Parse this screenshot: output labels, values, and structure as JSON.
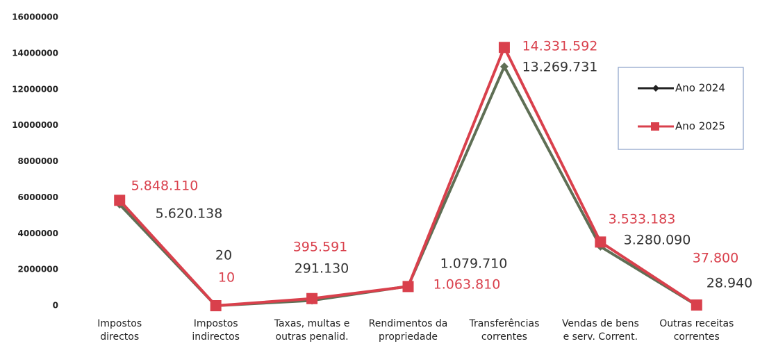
{
  "chart_data": {
    "type": "line",
    "categories": [
      [
        "Impostos",
        "directos"
      ],
      [
        "Impostos",
        "indirectos"
      ],
      [
        "Taxas, multas e",
        "outras penalid."
      ],
      [
        "Rendimentos da",
        "propriedade"
      ],
      [
        "Transferências",
        "correntes"
      ],
      [
        "Vendas de bens",
        "e serv. Corrent."
      ],
      [
        "Outras receitas",
        "correntes"
      ]
    ],
    "series": [
      {
        "name": "Ano 2024",
        "color": "#5f6f55",
        "marker": "diamond",
        "values": [
          5620138,
          20,
          291130,
          1079710,
          13269731,
          3280090,
          28940
        ],
        "value_labels": [
          "5.620.138",
          "20",
          "291.130",
          "1.079.710",
          "13.269.731",
          "3.280.090",
          "28.940"
        ]
      },
      {
        "name": "Ano 2025",
        "color": "#d9404c",
        "marker": "square",
        "values": [
          5848110,
          10,
          395591,
          1063810,
          14331592,
          3533183,
          37800
        ],
        "value_labels": [
          "5.848.110",
          "10",
          "395.591",
          "1.063.810",
          "14.331.592",
          "3.533.183",
          "37.800"
        ]
      }
    ],
    "ylim": [
      0,
      16000000
    ],
    "yticks": [
      0,
      2000000,
      4000000,
      6000000,
      8000000,
      10000000,
      12000000,
      14000000,
      16000000
    ],
    "legend": "right"
  }
}
